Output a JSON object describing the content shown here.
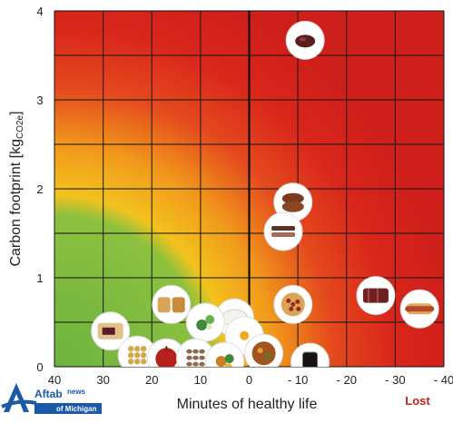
{
  "chart_data": {
    "type": "scatter",
    "title": "",
    "xlabel": "Minutes of healthy life",
    "ylabel": "Carbon footprint [kg",
    "ylabel_sub": "CO2e",
    "ylabel_suffix": "]",
    "xlim": [
      40,
      -40
    ],
    "ylim": [
      0,
      4
    ],
    "x_ticks": [
      {
        "value": 40,
        "label": "40"
      },
      {
        "value": 30,
        "label": "30"
      },
      {
        "value": 20,
        "label": "20"
      },
      {
        "value": 10,
        "label": "10"
      },
      {
        "value": 0,
        "label": "0"
      },
      {
        "value": -10,
        "label": "- 10"
      },
      {
        "value": -20,
        "label": "- 20"
      },
      {
        "value": -30,
        "label": "- 30"
      },
      {
        "value": -40,
        "label": "- 40"
      }
    ],
    "y_ticks": [
      {
        "value": 0,
        "label": "0"
      },
      {
        "value": 1,
        "label": "1"
      },
      {
        "value": 2,
        "label": "2"
      },
      {
        "value": 3,
        "label": "3"
      },
      {
        "value": 4,
        "label": "4"
      }
    ],
    "grid": true,
    "annotation": "Lost",
    "points": [
      {
        "x": -11.5,
        "y": 3.67,
        "icon": "beef-icon"
      },
      {
        "x": -9,
        "y": 1.85,
        "icon": "pork-icon"
      },
      {
        "x": -7,
        "y": 1.52,
        "icon": "lamb-icon"
      },
      {
        "x": -26,
        "y": 0.8,
        "icon": "processed-meat-icon"
      },
      {
        "x": -35,
        "y": 0.65,
        "icon": "hot-dog-icon"
      },
      {
        "x": -9,
        "y": 0.7,
        "icon": "pizza-icon"
      },
      {
        "x": 3,
        "y": 0.55,
        "icon": "milk-icon"
      },
      {
        "x": 1,
        "y": 0.35,
        "icon": "egg-icon"
      },
      {
        "x": -3,
        "y": 0.15,
        "icon": "chicken-icon"
      },
      {
        "x": -12.5,
        "y": 0.05,
        "icon": "soda-icon"
      },
      {
        "x": 16,
        "y": 0.7,
        "icon": "bread-icon"
      },
      {
        "x": 9,
        "y": 0.5,
        "icon": "vegetables-icon"
      },
      {
        "x": 28.5,
        "y": 0.4,
        "icon": "sandwich-icon"
      },
      {
        "x": 23,
        "y": 0.13,
        "icon": "legumes-icon"
      },
      {
        "x": 17,
        "y": 0.1,
        "icon": "apple-icon"
      },
      {
        "x": 11,
        "y": 0.1,
        "icon": "nuts-icon"
      },
      {
        "x": 5,
        "y": 0.06,
        "icon": "salad-icon"
      }
    ],
    "zone_colors": {
      "low": "#6cb33f",
      "mid": "#f4b21c",
      "high": "#d9241b"
    }
  },
  "logo": {
    "brand": "Aftab",
    "brand_suffix": "news",
    "source": "of Michigan"
  }
}
